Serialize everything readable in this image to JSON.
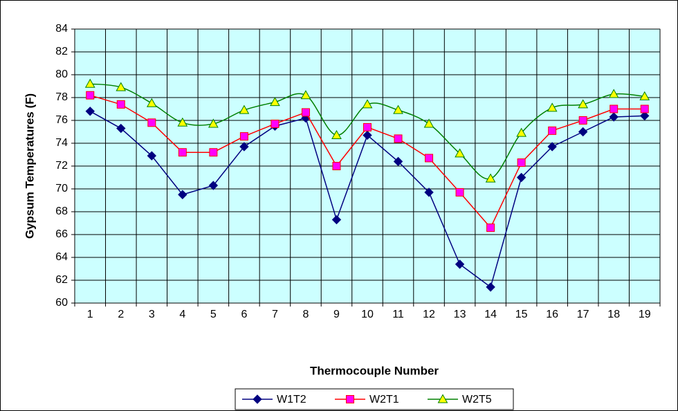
{
  "chart_data": {
    "type": "line",
    "y_label": "Gypsum Temperatures (F)",
    "x_label": "Thermocouple Number",
    "categories": [
      "1",
      "2",
      "3",
      "4",
      "5",
      "6",
      "7",
      "8",
      "9",
      "10",
      "11",
      "12",
      "13",
      "14",
      "15",
      "16",
      "17",
      "18",
      "19"
    ],
    "series": [
      {
        "name": "W1T2",
        "color": "#000080",
        "marker": "diamond",
        "marker_fill": "#000080",
        "smooth": false,
        "values": [
          76.8,
          75.3,
          72.9,
          69.5,
          70.3,
          73.7,
          75.5,
          76.2,
          67.3,
          74.7,
          72.4,
          69.7,
          63.4,
          61.4,
          71.0,
          73.7,
          75.0,
          76.3,
          76.4
        ]
      },
      {
        "name": "W2T1",
        "color": "#ff0000",
        "marker": "square",
        "marker_fill": "#ff00ff",
        "smooth": false,
        "values": [
          78.2,
          77.4,
          75.8,
          73.2,
          73.2,
          74.6,
          75.7,
          76.7,
          72.0,
          75.4,
          74.4,
          72.7,
          69.7,
          66.6,
          72.3,
          75.1,
          76.0,
          77.0,
          77.0
        ]
      },
      {
        "name": "W2T5",
        "color": "#008000",
        "marker": "triangle",
        "marker_fill": "#ffff00",
        "smooth": true,
        "values": [
          79.2,
          78.9,
          77.5,
          75.8,
          75.7,
          76.9,
          77.6,
          78.2,
          74.7,
          77.4,
          76.9,
          75.7,
          73.1,
          70.9,
          74.9,
          77.1,
          77.4,
          78.3,
          78.1
        ]
      }
    ],
    "ylim": [
      60,
      84
    ],
    "yticks": [
      60,
      62,
      64,
      66,
      68,
      70,
      72,
      74,
      76,
      78,
      80,
      82,
      84
    ],
    "grid": true,
    "plot_background": "#ccffff",
    "legend": "bottom"
  }
}
